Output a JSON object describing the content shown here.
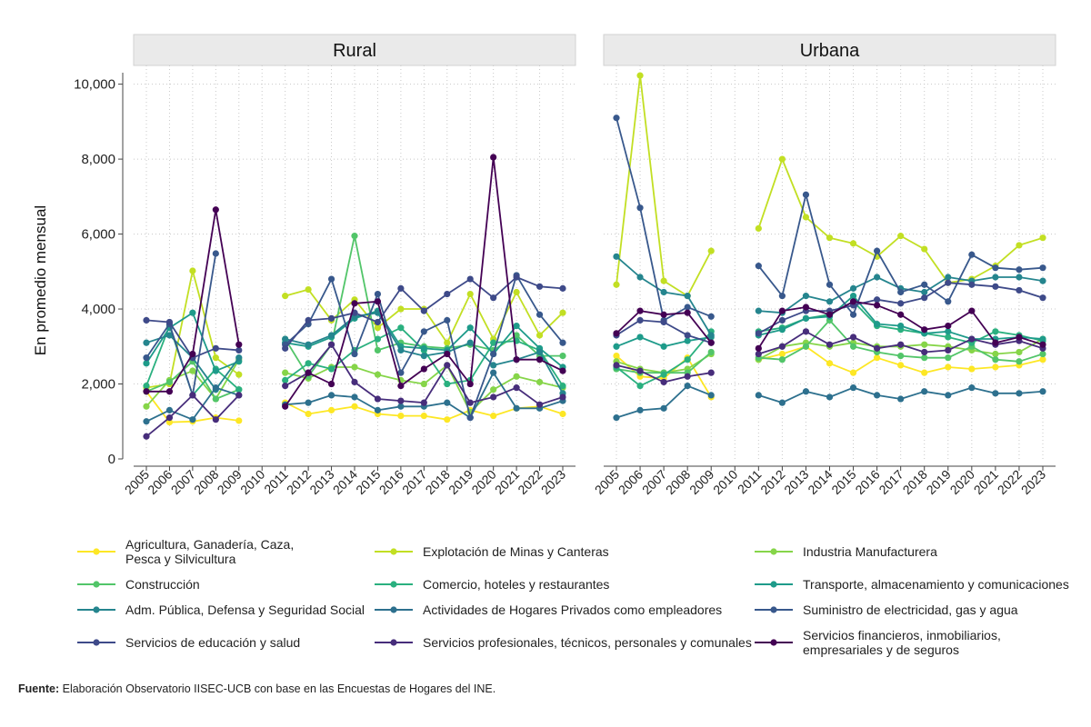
{
  "chart_data": {
    "type": "line",
    "ylabel": "En promedio mensual",
    "ylim": [
      0,
      10500
    ],
    "yticks": [
      0,
      2000,
      4000,
      6000,
      8000,
      10000
    ],
    "ytick_labels": [
      "0",
      "2,000",
      "4,000",
      "6,000",
      "8,000",
      "10,000"
    ],
    "x": [
      "2005",
      "2006",
      "2007",
      "2008",
      "2009",
      "2010",
      "2011",
      "2012",
      "2013",
      "2014",
      "2015",
      "2016",
      "2017",
      "2018",
      "2019",
      "2020",
      "2021",
      "2022",
      "2023"
    ],
    "panels": [
      "Rural",
      "Urbana"
    ],
    "series": [
      {
        "name": "Agricultura, Ganadería, Caza, Pesca y Silvicultura",
        "legend_lines": [
          "Agricultura, Ganadería, Caza,",
          "Pesca y Silvicultura"
        ],
        "color": "#fde725",
        "Rural": [
          1800,
          980,
          1000,
          1100,
          1020,
          null,
          1500,
          1200,
          1300,
          1400,
          1200,
          1150,
          1150,
          1050,
          1300,
          1150,
          1350,
          1400,
          1200
        ],
        "Urbana": [
          2750,
          2200,
          2150,
          2700,
          1650,
          null,
          2650,
          2800,
          3000,
          2550,
          2300,
          2700,
          2500,
          2300,
          2450,
          2400,
          2450,
          2500,
          2650
        ]
      },
      {
        "name": "Explotación de Minas y Canteras",
        "legend_lines": [
          "Explotación de Minas y Canteras"
        ],
        "color": "#c2df23",
        "Rural": [
          1900,
          2000,
          5020,
          2700,
          2250,
          null,
          4350,
          4520,
          3700,
          4250,
          3500,
          4000,
          4000,
          3100,
          4400,
          3200,
          4450,
          3300,
          3900
        ],
        "Urbana": [
          4650,
          10230,
          4750,
          4350,
          5550,
          null,
          6150,
          8000,
          6450,
          5900,
          5750,
          5400,
          5950,
          5600,
          4700,
          4800,
          5150,
          5700,
          5900
        ]
      },
      {
        "name": "Industria Manufacturera",
        "legend_lines": [
          "Industria Manufacturera"
        ],
        "color": "#86d549",
        "Rural": [
          1400,
          2100,
          2350,
          1600,
          2650,
          null,
          2300,
          2150,
          2450,
          2450,
          2250,
          2100,
          2000,
          2500,
          1250,
          1850,
          2200,
          2050,
          1900
        ],
        "Urbana": [
          2600,
          2400,
          2300,
          2400,
          2800,
          null,
          2650,
          3000,
          3100,
          3000,
          3100,
          3000,
          3000,
          3050,
          3000,
          2900,
          2800,
          2850,
          3200
        ]
      },
      {
        "name": "Construcción",
        "legend_lines": [
          "Construcción"
        ],
        "color": "#52c569",
        "Rural": [
          1800,
          2050,
          2600,
          1600,
          1850,
          null,
          3200,
          2200,
          3050,
          5950,
          2900,
          3100,
          3000,
          2950,
          3050,
          2900,
          3300,
          2750,
          2750
        ],
        "Urbana": [
          2400,
          2300,
          2300,
          2300,
          2850,
          null,
          2700,
          2650,
          3000,
          3700,
          3000,
          2850,
          2750,
          2700,
          2700,
          3000,
          2650,
          2600,
          2800
        ]
      },
      {
        "name": "Comercio, hoteles y restaurantes",
        "legend_lines": [
          "Comercio, hoteles y restaurantes"
        ],
        "color": "#2ab07f",
        "Rural": [
          1950,
          3550,
          1700,
          2400,
          1850,
          null,
          2100,
          2550,
          2400,
          2900,
          3200,
          3500,
          2900,
          2000,
          2100,
          3100,
          3150,
          2900,
          1950
        ],
        "Urbana": [
          2450,
          1950,
          2250,
          2650,
          3400,
          null,
          3400,
          3500,
          3750,
          3850,
          4200,
          3550,
          3450,
          3350,
          3250,
          3100,
          3400,
          3300,
          3150
        ]
      },
      {
        "name": "Transporte, almacenamiento y comunicaciones",
        "legend_lines": [
          "Transporte, almacenamiento y comunicaciones"
        ],
        "color": "#1e9b8a",
        "Rural": [
          2550,
          3500,
          3900,
          2350,
          2600,
          null,
          3100,
          3000,
          3250,
          3750,
          3950,
          3000,
          2950,
          2900,
          3500,
          2800,
          3550,
          2950,
          2450
        ],
        "Urbana": [
          3000,
          3250,
          3000,
          3150,
          3250,
          null,
          3300,
          3450,
          3750,
          3800,
          4350,
          3600,
          3550,
          3350,
          3400,
          3200,
          3200,
          3250,
          3200
        ]
      },
      {
        "name": "Adm. Pública, Defensa y Seguridad Social",
        "legend_lines": [
          "Adm. Pública, Defensa y Seguridad Social"
        ],
        "color": "#25858e",
        "Rural": [
          3100,
          3300,
          2700,
          1850,
          2700,
          null,
          3200,
          3050,
          3300,
          3800,
          3900,
          2900,
          2750,
          2850,
          3100,
          2500,
          2650,
          2850,
          1750
        ],
        "Urbana": [
          5400,
          4850,
          4450,
          4350,
          3300,
          null,
          3950,
          3900,
          4350,
          4200,
          4550,
          4850,
          4550,
          4450,
          4850,
          4750,
          4850,
          4850,
          4750
        ]
      },
      {
        "name": "Actividades de Hogares Privados como empleadores",
        "legend_lines": [
          "Actividades de Hogares Privados como empleadores"
        ],
        "color": "#2d708e",
        "Rural": [
          1000,
          1300,
          1050,
          1900,
          1700,
          null,
          1450,
          1500,
          1700,
          1650,
          1300,
          1400,
          1400,
          1500,
          1100,
          2300,
          1350,
          1350,
          1550
        ],
        "Urbana": [
          1100,
          1300,
          1350,
          1950,
          1700,
          null,
          1700,
          1500,
          1800,
          1650,
          1900,
          1700,
          1600,
          1800,
          1700,
          1900,
          1750,
          1750,
          1800
        ]
      },
      {
        "name": "Suministro de electricidad, gas y agua",
        "legend_lines": [
          "Suministro de electricidad, gas y agua"
        ],
        "color": "#38588c",
        "Rural": [
          2700,
          3600,
          1700,
          5480,
          null,
          null,
          3050,
          3600,
          4800,
          2800,
          4400,
          2300,
          3400,
          3700,
          1100,
          2800,
          4900,
          3850,
          3100
        ],
        "Urbana": [
          9100,
          6700,
          3700,
          4050,
          3800,
          null,
          5150,
          4350,
          7050,
          4650,
          3850,
          5550,
          4450,
          4650,
          4200,
          5450,
          5100,
          5050,
          5100
        ]
      },
      {
        "name": "Servicios de educación y salud",
        "legend_lines": [
          "Servicios de educación y salud"
        ],
        "color": "#3e4a89",
        "Rural": [
          3700,
          3650,
          2700,
          2950,
          2900,
          null,
          2950,
          3700,
          3750,
          3900,
          3650,
          4550,
          3950,
          4400,
          4800,
          4300,
          4850,
          4600,
          4550
        ],
        "Urbana": [
          3300,
          3700,
          3650,
          3300,
          3100,
          null,
          3350,
          3700,
          3950,
          3950,
          4100,
          4250,
          4150,
          4300,
          4700,
          4650,
          4600,
          4500,
          4300
        ]
      },
      {
        "name": "Servicios profesionales, técnicos, personales y comunales",
        "legend_lines": [
          "Servicios profesionales, técnicos, personales y comunales"
        ],
        "color": "#472d7b",
        "Rural": [
          600,
          1100,
          1700,
          1050,
          1700,
          null,
          1950,
          2300,
          3050,
          2050,
          1600,
          1550,
          1500,
          2500,
          1500,
          1650,
          1900,
          1450,
          1650
        ],
        "Urbana": [
          2500,
          2350,
          2050,
          2200,
          2300,
          null,
          2800,
          3000,
          3400,
          3050,
          3250,
          2950,
          3050,
          2850,
          2900,
          3200,
          3050,
          3150,
          2950
        ]
      },
      {
        "name": "Servicios financieros, inmobiliarios, empresariales y de seguros",
        "legend_lines": [
          "Servicios financieros, inmobiliarios,",
          "empresariales y de seguros"
        ],
        "color": "#440154",
        "Rural": [
          1800,
          1800,
          2800,
          6650,
          3050,
          null,
          1400,
          2300,
          2000,
          4150,
          4200,
          1950,
          2400,
          2800,
          2000,
          8050,
          2650,
          2650,
          2350
        ],
        "Urbana": [
          3350,
          3950,
          3850,
          3900,
          3100,
          null,
          2950,
          3950,
          4050,
          3850,
          4200,
          4100,
          3850,
          3450,
          3550,
          3950,
          3100,
          3250,
          3050
        ]
      }
    ]
  },
  "source": {
    "label": "Fuente:",
    "text": " Elaboración Observatorio IISEC-UCB con base en las Encuestas de Hogares del INE."
  }
}
